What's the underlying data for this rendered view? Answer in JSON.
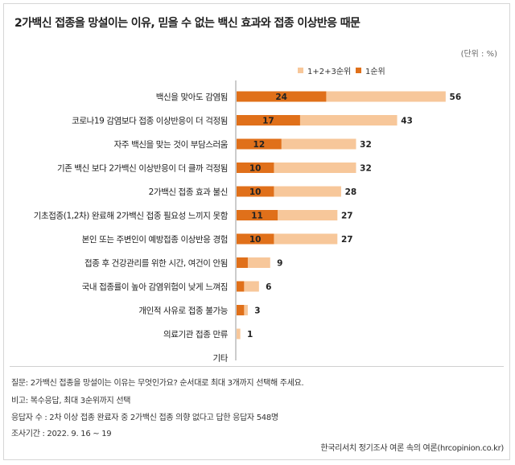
{
  "title": "2가백신 접종을 망설이는 이유, 믿을 수 없는 백신 효과와 접종 이상반응 때문",
  "unit_label": "(단위 : %)",
  "colors": {
    "total": "#f7c79a",
    "first": "#e0701a",
    "text": "#222222"
  },
  "chart_data": {
    "type": "bar",
    "orientation": "horizontal",
    "categories": [
      "백신을 맞아도 감염됨",
      "코로나19 감염보다 접종 이상반응이 더 걱정됨",
      "자주 백신을 맞는 것이 부담스러움",
      "기존 백신 보다 2가백신 이상반응이 더 클까 걱정됨",
      "2가백신 접종 효과 불신",
      "기초접종(1,2차) 완료해 2가백신 접종 필요성 느끼지 못함",
      "본인 또는 주변인이 예방접종 이상반응 경험",
      "접종 후 건강관리를 위한 시간, 여건이 안됨",
      "국내 접종률이 높아 감염위험이 낮게 느껴짐",
      "개인적 사유로 접종 불가능",
      "의료기관 접종 만류",
      "기타"
    ],
    "series": [
      {
        "name": "1+2+3순위",
        "values": [
          56,
          43,
          32,
          32,
          28,
          27,
          27,
          9,
          6,
          3,
          1,
          0
        ]
      },
      {
        "name": "1순위",
        "values": [
          24,
          17,
          12,
          10,
          10,
          11,
          10,
          3,
          2,
          2,
          0,
          0
        ]
      }
    ],
    "total_labels": [
      "56",
      "43",
      "32",
      "32",
      "28",
      "27",
      "27",
      "9",
      "6",
      "3",
      "1",
      ""
    ],
    "first_labels": [
      "24",
      "17",
      "12",
      "10",
      "10",
      "11",
      "10",
      "",
      "",
      "",
      "",
      ""
    ],
    "xlim": [
      0,
      60
    ],
    "legend": "top-right",
    "grid": false
  },
  "notes": {
    "question": "질문:  2가백신 접종을 망설이는 이유는 무엇인가요? 순서대로 최대 3개까지 선택해 주세요.",
    "remark": "비고: 복수응답, 최대 3순위까지 선택",
    "respondents": "응답자 수 : 2차 이상 접종 완료자 중 2가백신 접종 의향 없다고 답한 응답자 548명",
    "period": "조사기간 : 2022. 9. 16 ~ 19"
  },
  "source": "한국리서치 정기조사 여론 속의 여론(hrcopinion.co.kr)"
}
